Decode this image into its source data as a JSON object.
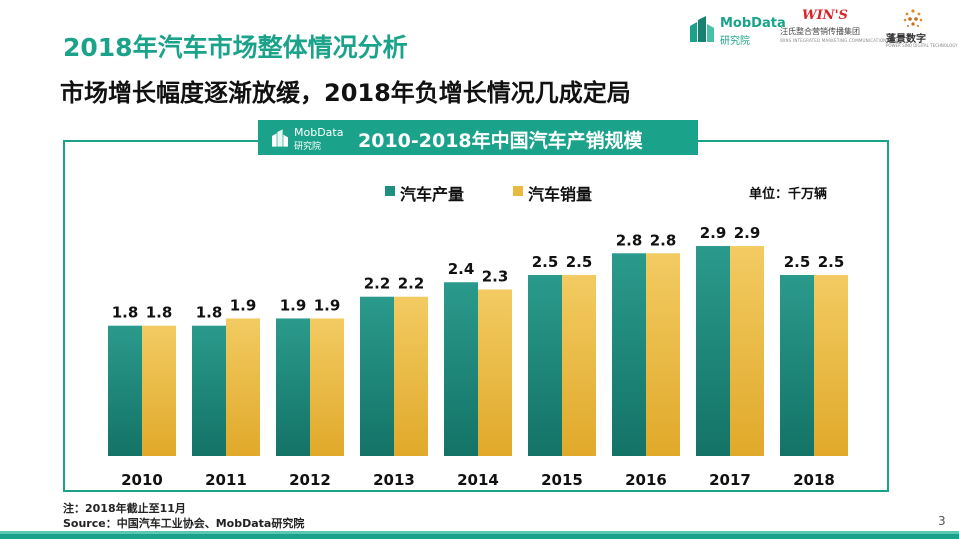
{
  "page": {
    "title": "2018年汽车市场整体情况分析",
    "subtitle": "市场增长幅度逐渐放缓，2018年负增长情况几成定局",
    "page_number": "3",
    "note": "注：2018年截止至11月",
    "source": "Source：中国汽车工业协会、MobData研究院"
  },
  "logos": {
    "mobdata": {
      "brand": "MobData",
      "sub": "研究院"
    },
    "wins": {
      "brand": "WIN'S",
      "cn": "汪氏整合营销传播集团",
      "en": "WINS INTEGRATED MARKETING COMMUNICATION GROUP"
    },
    "pengjing": {
      "cn": "蓬景数字",
      "en": "POWER SINO DIGITAL TECHNOLOGY"
    }
  },
  "colors": {
    "accent": "#1aa38a",
    "production": "#1f8f82",
    "sales": "#e9b83e"
  },
  "chart_data": {
    "type": "bar",
    "title": "2010-2018年中国汽车产销规模",
    "unit": "单位：千万辆",
    "categories": [
      "2010",
      "2011",
      "2012",
      "2013",
      "2014",
      "2015",
      "2016",
      "2017",
      "2018"
    ],
    "series": [
      {
        "name": "汽车产量",
        "values": [
          1.8,
          1.8,
          1.9,
          2.2,
          2.4,
          2.5,
          2.8,
          2.9,
          2.5
        ]
      },
      {
        "name": "汽车销量",
        "values": [
          1.8,
          1.9,
          1.9,
          2.2,
          2.3,
          2.5,
          2.8,
          2.9,
          2.5
        ]
      }
    ],
    "ylim": [
      0,
      3.0
    ],
    "grid": false,
    "legend_position": "top-center"
  }
}
